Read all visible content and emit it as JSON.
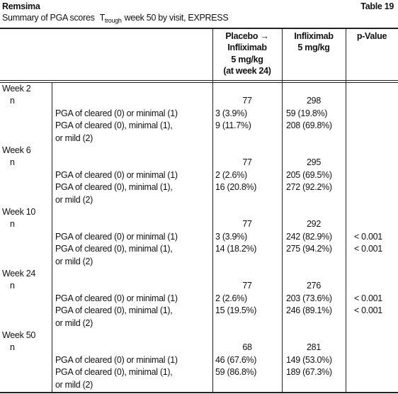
{
  "header": {
    "title": "Remsima",
    "table_number": "Table 19",
    "subtitle": {
      "before": "Summary of PGA scores",
      "symbol": "T",
      "subscript": "trough",
      "after": "week 50 by visit, EXPRESS"
    }
  },
  "table": {
    "columns": [
      [
        "Placebo →",
        "Infliximab",
        "5 mg/kg",
        "(at week 24)"
      ],
      [
        "Infliximab",
        "5 mg/kg"
      ],
      [
        "p-Value"
      ]
    ],
    "groups": [
      {
        "visit": "Week 2",
        "n_label": "n",
        "n": [
          "77",
          "298"
        ],
        "rows": [
          {
            "label": [
              "PGA of cleared (0) or minimal (1)"
            ],
            "values": [
              "3 (3.9%)",
              "59 (19.8%)"
            ]
          },
          {
            "label": [
              "PGA of cleared (0), minimal (1),",
              "or mild (2)"
            ],
            "values": [
              "9 (11.7%)",
              "208 (69.8%)"
            ]
          }
        ]
      },
      {
        "visit": "Week 6",
        "n_label": "n",
        "n": [
          "77",
          "295"
        ],
        "rows": [
          {
            "label": [
              "PGA of cleared (0) or minimal (1)"
            ],
            "values": [
              "2 (2.6%)",
              "205 (69.5%)"
            ]
          },
          {
            "label": [
              "PGA of cleared (0), minimal (1),",
              "or mild (2)"
            ],
            "values": [
              "16 (20.8%)",
              "272 (92.2%)"
            ]
          }
        ]
      },
      {
        "visit": "Week 10",
        "n_label": "n",
        "n": [
          "77",
          "292"
        ],
        "rows": [
          {
            "label": [
              "PGA of cleared (0) or minimal (1)"
            ],
            "values": [
              "3 (3.9%)",
              "242 (82.9%)",
              "< 0.001"
            ]
          },
          {
            "label": [
              "PGA of cleared (0), minimal (1),",
              "or mild (2)"
            ],
            "values": [
              "14 (18.2%)",
              "275 (94.2%)",
              "< 0.001"
            ]
          }
        ]
      },
      {
        "visit": "Week 24",
        "n_label": "n",
        "n": [
          "77",
          "276"
        ],
        "rows": [
          {
            "label": [
              "PGA of cleared (0) or minimal (1)"
            ],
            "values": [
              "2 (2.6%)",
              "203 (73.6%)",
              "< 0.001"
            ]
          },
          {
            "label": [
              "PGA of cleared (0), minimal (1),",
              "or mild (2)"
            ],
            "values": [
              "15 (19.5%)",
              "246 (89.1%)",
              "< 0.001"
            ]
          }
        ]
      },
      {
        "visit": "Week 50",
        "n_label": "n",
        "n": [
          "68",
          "281"
        ],
        "rows": [
          {
            "label": [
              "PGA of cleared (0) or minimal (1)"
            ],
            "values": [
              "46 (67.6%)",
              "149 (53.0%)"
            ]
          },
          {
            "label": [
              "PGA of cleared (0), minimal (1),",
              "or mild (2)"
            ],
            "values": [
              "59 (86.8%)",
              "189 (67.3%)"
            ]
          }
        ]
      }
    ]
  }
}
